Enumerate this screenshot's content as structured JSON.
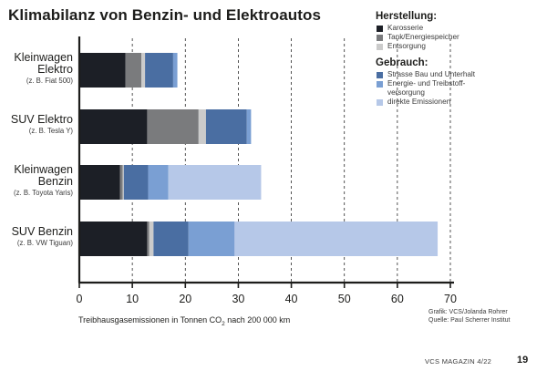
{
  "chart_data": {
    "type": "bar",
    "orientation": "horizontal",
    "stacked": true,
    "title": "Klimabilanz von Benzin- und Elektroautos",
    "xlabel_before": "Treibhausgasemissionen in Tonnen CO",
    "xlabel_sub": "2",
    "xlabel_after": " nach 200 000 km",
    "xlim": [
      0,
      70
    ],
    "xticks": [
      0,
      10,
      20,
      30,
      40,
      50,
      60,
      70
    ],
    "grid": true,
    "categories": [
      {
        "name": "Kleinwagen\nElektro",
        "example": "(z. B. Fiat 500)"
      },
      {
        "name": "SUV Elektro",
        "example": "(z. B. Tesla Y)"
      },
      {
        "name": "Kleinwagen\nBenzin",
        "example": "(z. B. Toyota Yaris)"
      },
      {
        "name": "SUV Benzin",
        "example": "(z. B. VW Tiguan)"
      }
    ],
    "series": [
      {
        "name": "Karosserie",
        "group": "Herstellung",
        "color": "#1c1f26",
        "values": [
          8.7,
          12.8,
          7.7,
          12.8
        ]
      },
      {
        "name": "Tank/Energiespeicher",
        "group": "Herstellung",
        "color": "#7a7b7d",
        "values": [
          3.0,
          9.7,
          0.5,
          0.4
        ]
      },
      {
        "name": "Entsorgung",
        "group": "Herstellung",
        "color": "#cbcbcb",
        "values": [
          0.7,
          1.4,
          0.2,
          0.8
        ]
      },
      {
        "name": "Strasse Bau und Unterhalt",
        "group": "Gebrauch",
        "color": "#4a6ea2",
        "values": [
          5.3,
          7.7,
          4.6,
          6.6
        ]
      },
      {
        "name": "Energie- und Treibstoff-\nversorgung",
        "group": "Gebrauch",
        "color": "#7a9fd3",
        "values": [
          0.8,
          0.8,
          3.8,
          8.7
        ]
      },
      {
        "name": "direkte Emissionen",
        "group": "Gebrauch",
        "color": "#b6c8e8",
        "values": [
          0,
          0,
          17.5,
          38.3
        ]
      }
    ]
  },
  "legend": {
    "group_production": "Herstellung:",
    "group_use": "Gebrauch:"
  },
  "credits": {
    "graphic": "Grafik: VCS/Jolanda Rohrer",
    "source": "Quelle: Paul Scherrer Institut"
  },
  "footer": {
    "magazine": "VCS MAGAZIN 4/22",
    "page": "19"
  }
}
